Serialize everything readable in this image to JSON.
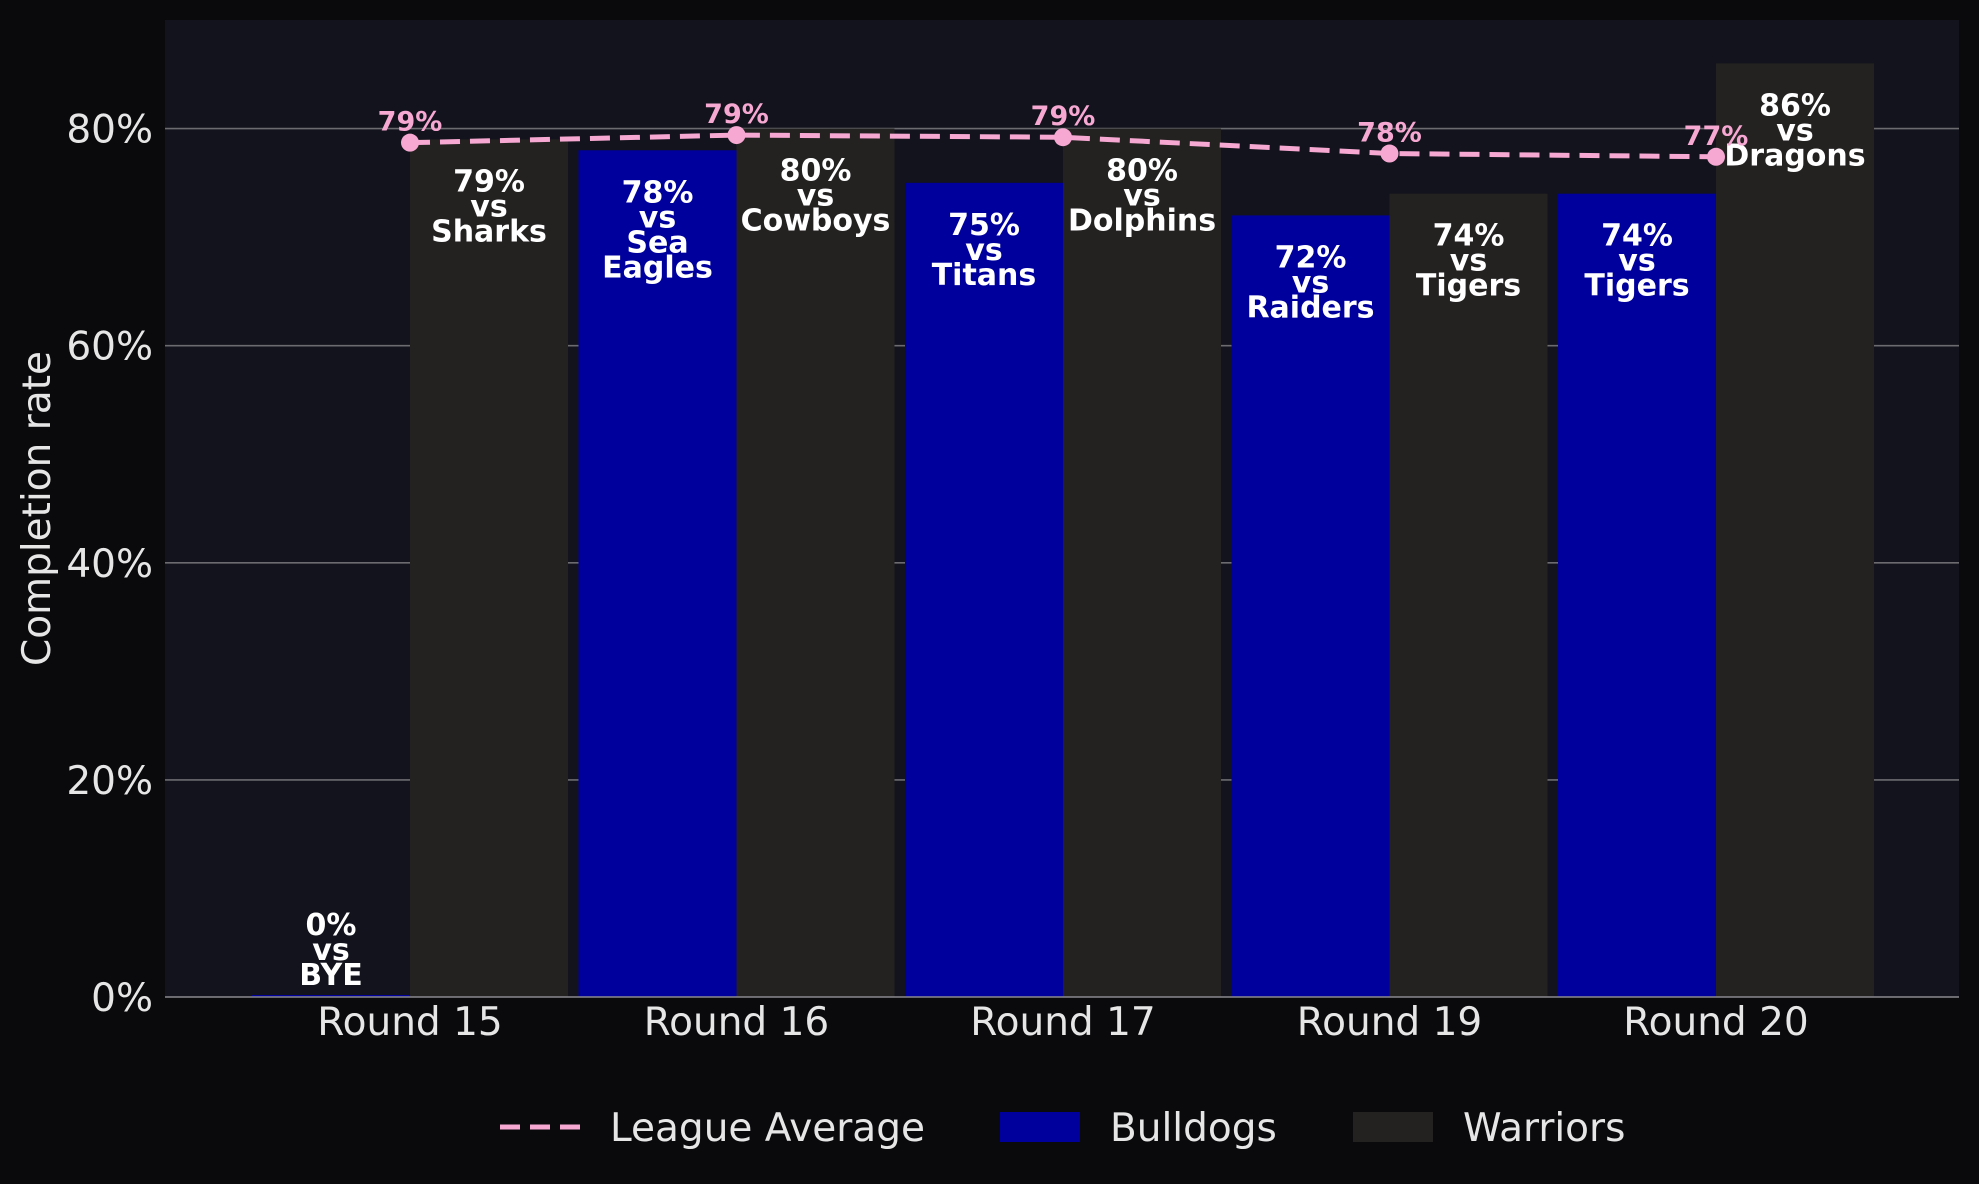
{
  "chart_data": {
    "type": "bar",
    "title": "",
    "xlabel": "",
    "ylabel": "Completion rate",
    "ylim": [
      0,
      90
    ],
    "yticks": [
      0,
      20,
      40,
      60,
      80
    ],
    "ytick_labels": [
      "0%",
      "20%",
      "40%",
      "60%",
      "80%"
    ],
    "grid": "horizontal",
    "legend_position": "bottom-center",
    "categories": [
      "Round 15",
      "Round 16",
      "Round 17",
      "Round 19",
      "Round 20"
    ],
    "series": [
      {
        "name": "Bulldogs",
        "kind": "bar",
        "color": "#00009c",
        "values": [
          0,
          78,
          75,
          72,
          74
        ],
        "labels": [
          [
            "0%",
            "vs",
            "BYE"
          ],
          [
            "78%",
            "vs",
            "Sea",
            "Eagles"
          ],
          [
            "75%",
            "vs",
            "Titans"
          ],
          [
            "72%",
            "vs",
            "Raiders"
          ],
          [
            "74%",
            "vs",
            "Tigers"
          ]
        ]
      },
      {
        "name": "Warriors",
        "kind": "bar",
        "color": "#242121",
        "values": [
          79,
          80,
          80,
          74,
          86
        ],
        "labels": [
          [
            "79%",
            "vs",
            "Sharks"
          ],
          [
            "80%",
            "vs",
            "Cowboys"
          ],
          [
            "80%",
            "vs",
            "Dolphins"
          ],
          [
            "74%",
            "vs",
            "Tigers"
          ],
          [
            "86%",
            "vs",
            "Dragons"
          ]
        ]
      },
      {
        "name": "League Average",
        "kind": "line",
        "style": "dashed",
        "color": "#f6a8d2",
        "values": [
          78.7,
          79.4,
          79.2,
          77.7,
          77.4
        ],
        "labels": [
          "79%",
          "79%",
          "79%",
          "78%",
          "77%"
        ]
      }
    ],
    "legend": [
      "League Average",
      "Bulldogs",
      "Warriors"
    ]
  }
}
